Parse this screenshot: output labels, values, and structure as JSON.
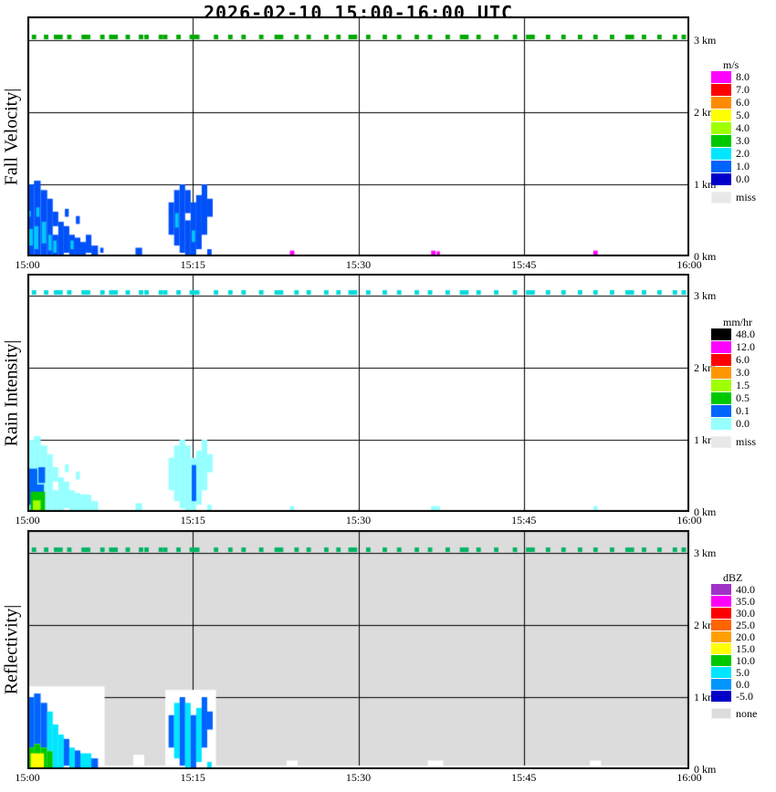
{
  "title": "2026-02-10  15:00-16:00 UTC",
  "time_labels": [
    "15:00",
    "15:15",
    "15:30",
    "15:45",
    "16:00"
  ],
  "height_labels": [
    {
      "text": "3 km",
      "km": 3
    },
    {
      "text": "2 km",
      "km": 2
    },
    {
      "text": "1 km",
      "km": 1
    },
    {
      "text": "0 km",
      "km": 0
    }
  ],
  "status_band": {
    "height_km": 3.0,
    "marks": [
      [
        0.4,
        0.4
      ],
      [
        1.5,
        0.4
      ],
      [
        2.4,
        0.8
      ],
      [
        3.6,
        0.4
      ],
      [
        4.9,
        0.4
      ],
      [
        5.3,
        0.4
      ],
      [
        6.6,
        0.4
      ],
      [
        7.4,
        0.8
      ],
      [
        8.9,
        0.4
      ],
      [
        10.1,
        0.4
      ],
      [
        10.6,
        0.4
      ],
      [
        11.9,
        0.4
      ],
      [
        12.3,
        0.4
      ],
      [
        13.5,
        0.4
      ],
      [
        14.7,
        0.8
      ],
      [
        15.2,
        0.4
      ],
      [
        16.9,
        0.4
      ],
      [
        18.2,
        0.4
      ],
      [
        19.4,
        0.4
      ],
      [
        21.0,
        0.4
      ],
      [
        22.4,
        0.8
      ],
      [
        24.2,
        0.4
      ],
      [
        25.3,
        0.4
      ],
      [
        26.9,
        0.4
      ],
      [
        28.0,
        0.4
      ],
      [
        29.1,
        0.8
      ],
      [
        30.7,
        0.4
      ],
      [
        32.2,
        0.4
      ],
      [
        33.5,
        0.4
      ],
      [
        35.1,
        0.4
      ],
      [
        36.3,
        0.4
      ],
      [
        37.9,
        0.4
      ],
      [
        39.2,
        0.8
      ],
      [
        40.7,
        0.4
      ],
      [
        42.3,
        0.4
      ],
      [
        44.0,
        0.4
      ],
      [
        45.2,
        0.8
      ],
      [
        47.0,
        0.4
      ],
      [
        48.4,
        0.4
      ],
      [
        49.9,
        0.4
      ],
      [
        51.3,
        0.4
      ],
      [
        52.8,
        0.4
      ],
      [
        54.2,
        0.8
      ],
      [
        55.7,
        0.4
      ],
      [
        57.1,
        0.4
      ],
      [
        58.5,
        0.4
      ],
      [
        59.3,
        0.4
      ]
    ]
  },
  "chart_data": [
    {
      "type": "heatmap",
      "panel": "fall-velocity",
      "ylabel": "Fall Velocity|",
      "units": "m/s",
      "x": {
        "ticks": [
          "15:00",
          "15:15",
          "15:30",
          "15:45",
          "16:00"
        ],
        "minutes": [
          0,
          15,
          30,
          45,
          60
        ]
      },
      "y": {
        "ticks_km": [
          0,
          1,
          2,
          3
        ],
        "max_km": 3.33
      },
      "background": "#FFFFFF",
      "band_color": "#00A800",
      "legend": {
        "title": "m/s",
        "entries": [
          [
            "8.0",
            "#FF00FF"
          ],
          [
            "7.0",
            "#FF0000"
          ],
          [
            "6.0",
            "#FF8C00"
          ],
          [
            "5.0",
            "#FFFF00"
          ],
          [
            "4.0",
            "#A0FF00"
          ],
          [
            "3.0",
            "#00C800"
          ],
          [
            "2.0",
            "#00E6FF"
          ],
          [
            "1.0",
            "#0064FF"
          ],
          [
            "0.0",
            "#0000C8"
          ]
        ],
        "missing": [
          "miss",
          "#E8E8E8"
        ]
      },
      "cells": [
        [
          0.0,
          0.6,
          0.0,
          1.0,
          "#0050FA"
        ],
        [
          0.0,
          0.3,
          0.55,
          0.63,
          "#00C8FA"
        ],
        [
          0.1,
          0.5,
          0.15,
          0.38,
          "#00C8FA"
        ],
        [
          0.6,
          1.2,
          0.0,
          1.05,
          "#0050FA"
        ],
        [
          0.6,
          1.0,
          0.1,
          0.42,
          "#00C8FA"
        ],
        [
          0.8,
          1.1,
          0.55,
          0.68,
          "#00C8FA"
        ],
        [
          1.2,
          1.8,
          0.0,
          0.92,
          "#0050FA"
        ],
        [
          1.3,
          1.7,
          0.18,
          0.48,
          "#00C8FA"
        ],
        [
          1.8,
          2.3,
          0.0,
          0.8,
          "#0050FA"
        ],
        [
          1.9,
          2.2,
          0.08,
          0.3,
          "#00C8FA"
        ],
        [
          2.3,
          2.8,
          0.0,
          0.3,
          "#0050FA"
        ],
        [
          2.3,
          2.8,
          0.42,
          0.62,
          "#0050FA"
        ],
        [
          2.35,
          2.65,
          0.05,
          0.22,
          "#00C8FA"
        ],
        [
          2.8,
          3.3,
          0.0,
          0.48,
          "#0050FA"
        ],
        [
          3.3,
          3.8,
          0.05,
          0.42,
          "#0050FA"
        ],
        [
          3.4,
          3.75,
          0.55,
          0.66,
          "#0050FA"
        ],
        [
          3.8,
          4.3,
          0.0,
          0.3,
          "#0050FA"
        ],
        [
          3.9,
          4.2,
          0.1,
          0.22,
          "#00C8FA"
        ],
        [
          4.3,
          4.8,
          0.0,
          0.26,
          "#0050FA"
        ],
        [
          4.4,
          4.75,
          0.45,
          0.56,
          "#0050FA"
        ],
        [
          4.8,
          5.3,
          0.0,
          0.2,
          "#0050FA"
        ],
        [
          5.3,
          5.8,
          0.05,
          0.3,
          "#0050FA"
        ],
        [
          5.8,
          6.4,
          0.0,
          0.15,
          "#0050FA"
        ],
        [
          6.6,
          6.9,
          0.05,
          0.12,
          "#0050FA"
        ],
        [
          9.8,
          10.4,
          0.0,
          0.12,
          "#0050FA"
        ],
        [
          12.8,
          13.3,
          0.3,
          0.75,
          "#0050FA"
        ],
        [
          13.3,
          13.8,
          0.15,
          0.92,
          "#0050FA"
        ],
        [
          13.4,
          13.7,
          0.4,
          0.6,
          "#00C8FA"
        ],
        [
          13.8,
          14.3,
          0.05,
          1.0,
          "#0050FA"
        ],
        [
          14.3,
          14.8,
          0.0,
          0.5,
          "#0050FA"
        ],
        [
          14.3,
          14.8,
          0.6,
          0.92,
          "#0050FA"
        ],
        [
          14.8,
          15.3,
          0.0,
          0.75,
          "#0050FA"
        ],
        [
          14.9,
          15.2,
          0.2,
          0.36,
          "#00C8FA"
        ],
        [
          15.3,
          15.8,
          0.1,
          0.85,
          "#0050FA"
        ],
        [
          15.8,
          16.3,
          0.3,
          1.0,
          "#0050FA"
        ],
        [
          16.3,
          16.8,
          0.55,
          0.8,
          "#0050FA"
        ],
        [
          16.3,
          16.7,
          0.0,
          0.1,
          "#0050FA"
        ],
        [
          23.8,
          24.2,
          0.02,
          0.08,
          "#FF00FF"
        ],
        [
          36.6,
          37.0,
          0.02,
          0.08,
          "#FF00FF"
        ],
        [
          37.1,
          37.4,
          0.02,
          0.07,
          "#FF00FF"
        ],
        [
          51.3,
          51.7,
          0.02,
          0.08,
          "#FF00FF"
        ]
      ]
    },
    {
      "type": "heatmap",
      "panel": "rain-intensity",
      "ylabel": "Rain Intensity|",
      "units": "mm/hr",
      "x": {
        "ticks": [
          "15:00",
          "15:15",
          "15:30",
          "15:45",
          "16:00"
        ],
        "minutes": [
          0,
          15,
          30,
          45,
          60
        ]
      },
      "y": {
        "ticks_km": [
          0,
          1,
          2,
          3
        ],
        "max_km": 3.33
      },
      "background": "#FFFFFF",
      "band_color": "#00DCDC",
      "legend": {
        "title": "mm/hr",
        "entries": [
          [
            "48.0",
            "#000000"
          ],
          [
            "12.0",
            "#FF00FF"
          ],
          [
            "6.0",
            "#FF0000"
          ],
          [
            "3.0",
            "#FF9600"
          ],
          [
            "1.5",
            "#A0FF00"
          ],
          [
            "0.5",
            "#00C800"
          ],
          [
            "0.1",
            "#0064FF"
          ],
          [
            "0.0",
            "#96FFFF"
          ]
        ],
        "missing": [
          "miss",
          "#E8E8E8"
        ]
      },
      "cells": [
        [
          0.0,
          0.6,
          0.0,
          1.0,
          "#96FFFF"
        ],
        [
          0.6,
          1.2,
          0.0,
          1.05,
          "#96FFFF"
        ],
        [
          1.2,
          1.8,
          0.0,
          0.92,
          "#96FFFF"
        ],
        [
          1.8,
          2.3,
          0.0,
          0.8,
          "#96FFFF"
        ],
        [
          2.3,
          2.8,
          0.0,
          0.3,
          "#96FFFF"
        ],
        [
          2.3,
          2.8,
          0.42,
          0.62,
          "#96FFFF"
        ],
        [
          2.8,
          3.3,
          0.0,
          0.48,
          "#96FFFF"
        ],
        [
          3.3,
          3.8,
          0.05,
          0.42,
          "#96FFFF"
        ],
        [
          3.4,
          3.75,
          0.55,
          0.66,
          "#96FFFF"
        ],
        [
          3.8,
          4.3,
          0.0,
          0.3,
          "#96FFFF"
        ],
        [
          4.3,
          4.8,
          0.0,
          0.26,
          "#96FFFF"
        ],
        [
          4.4,
          4.75,
          0.45,
          0.56,
          "#96FFFF"
        ],
        [
          4.8,
          5.8,
          0.0,
          0.24,
          "#96FFFF"
        ],
        [
          5.8,
          6.4,
          0.0,
          0.15,
          "#96FFFF"
        ],
        [
          9.8,
          10.4,
          0.0,
          0.12,
          "#96FFFF"
        ],
        [
          0.1,
          0.9,
          0.1,
          0.6,
          "#0064FF"
        ],
        [
          0.3,
          1.5,
          0.0,
          0.38,
          "#0064FF"
        ],
        [
          1.0,
          1.6,
          0.4,
          0.62,
          "#0064FF"
        ],
        [
          0.3,
          1.6,
          0.0,
          0.28,
          "#00C800"
        ],
        [
          0.5,
          1.2,
          0.02,
          0.16,
          "#A0FF00"
        ],
        [
          12.8,
          13.3,
          0.3,
          0.75,
          "#96FFFF"
        ],
        [
          13.3,
          13.8,
          0.15,
          0.92,
          "#96FFFF"
        ],
        [
          13.8,
          14.3,
          0.05,
          1.0,
          "#96FFFF"
        ],
        [
          14.3,
          14.8,
          0.0,
          0.92,
          "#96FFFF"
        ],
        [
          14.8,
          15.3,
          0.0,
          0.75,
          "#96FFFF"
        ],
        [
          15.3,
          15.8,
          0.1,
          0.85,
          "#96FFFF"
        ],
        [
          15.8,
          16.3,
          0.3,
          1.0,
          "#96FFFF"
        ],
        [
          16.3,
          16.8,
          0.55,
          0.8,
          "#96FFFF"
        ],
        [
          16.3,
          16.7,
          0.0,
          0.1,
          "#96FFFF"
        ],
        [
          14.9,
          15.3,
          0.15,
          0.65,
          "#0064FF"
        ],
        [
          23.8,
          24.2,
          0.02,
          0.08,
          "#96FFFF"
        ],
        [
          36.6,
          37.4,
          0.02,
          0.08,
          "#96FFFF"
        ],
        [
          51.3,
          51.7,
          0.02,
          0.08,
          "#96FFFF"
        ]
      ]
    },
    {
      "type": "heatmap",
      "panel": "reflectivity",
      "ylabel": "Reflectivity|",
      "units": "dBZ",
      "x": {
        "ticks": [
          "15:00",
          "15:15",
          "15:30",
          "15:45",
          "16:00"
        ],
        "minutes": [
          0,
          15,
          30,
          45,
          60
        ]
      },
      "y": {
        "ticks_km": [
          0,
          1,
          2,
          3
        ],
        "max_km": 3.33
      },
      "background": "#DCDCDC",
      "band_color": "#00B464",
      "legend": {
        "title": "dBZ",
        "entries": [
          [
            "40.0",
            "#A032C8"
          ],
          [
            "35.0",
            "#FF00FF"
          ],
          [
            "30.0",
            "#FF0000"
          ],
          [
            "25.0",
            "#FF6400"
          ],
          [
            "20.0",
            "#FFA000"
          ],
          [
            "15.0",
            "#FFFF00"
          ],
          [
            "10.0",
            "#00C800"
          ],
          [
            "5.0",
            "#00E6FF"
          ],
          [
            "0.0",
            "#0096FF"
          ],
          [
            "-5.0",
            "#0000C8"
          ]
        ],
        "missing": [
          "none",
          "#DCDCDC"
        ]
      },
      "cells": [
        [
          0.0,
          60.0,
          0.0,
          0.05,
          "#FFFFFF"
        ],
        [
          0.0,
          7.0,
          0.0,
          1.15,
          "#FFFFFF"
        ],
        [
          9.6,
          10.6,
          0.0,
          0.2,
          "#FFFFFF"
        ],
        [
          12.5,
          17.1,
          0.0,
          1.1,
          "#FFFFFF"
        ],
        [
          23.5,
          24.5,
          0.0,
          0.12,
          "#FFFFFF"
        ],
        [
          36.3,
          37.7,
          0.0,
          0.12,
          "#FFFFFF"
        ],
        [
          51.0,
          52.0,
          0.0,
          0.12,
          "#FFFFFF"
        ],
        [
          0.0,
          0.6,
          0.3,
          1.0,
          "#0064FF"
        ],
        [
          0.0,
          0.6,
          0.0,
          0.3,
          "#00C800"
        ],
        [
          0.6,
          1.2,
          0.35,
          1.05,
          "#0064FF"
        ],
        [
          0.6,
          1.2,
          0.0,
          0.35,
          "#00C800"
        ],
        [
          1.2,
          1.8,
          0.3,
          0.92,
          "#0064FF"
        ],
        [
          1.2,
          1.8,
          0.0,
          0.3,
          "#00C800"
        ],
        [
          0.3,
          1.5,
          0.0,
          0.22,
          "#FFFF00"
        ],
        [
          1.8,
          2.3,
          0.25,
          0.8,
          "#00E6FF"
        ],
        [
          1.8,
          2.3,
          0.0,
          0.25,
          "#00C800"
        ],
        [
          2.3,
          2.8,
          0.0,
          0.62,
          "#00E6FF"
        ],
        [
          2.8,
          3.3,
          0.0,
          0.48,
          "#00E6FF"
        ],
        [
          3.3,
          3.8,
          0.05,
          0.42,
          "#0064FF"
        ],
        [
          3.8,
          4.3,
          0.0,
          0.3,
          "#00E6FF"
        ],
        [
          4.3,
          4.8,
          0.0,
          0.26,
          "#0064FF"
        ],
        [
          4.8,
          5.8,
          0.0,
          0.22,
          "#00E6FF"
        ],
        [
          5.8,
          6.4,
          0.0,
          0.15,
          "#0064FF"
        ],
        [
          12.8,
          13.3,
          0.3,
          0.75,
          "#0064FF"
        ],
        [
          13.3,
          13.8,
          0.15,
          0.92,
          "#00E6FF"
        ],
        [
          13.8,
          14.3,
          0.05,
          1.0,
          "#0064FF"
        ],
        [
          14.3,
          14.8,
          0.0,
          0.92,
          "#00E6FF"
        ],
        [
          14.8,
          15.3,
          0.0,
          0.75,
          "#0064FF"
        ],
        [
          15.3,
          15.8,
          0.1,
          0.85,
          "#00E6FF"
        ],
        [
          15.8,
          16.3,
          0.3,
          1.0,
          "#0064FF"
        ],
        [
          16.3,
          16.8,
          0.55,
          0.8,
          "#0064FF"
        ],
        [
          16.3,
          16.7,
          0.0,
          0.1,
          "#00E6FF"
        ]
      ]
    }
  ]
}
